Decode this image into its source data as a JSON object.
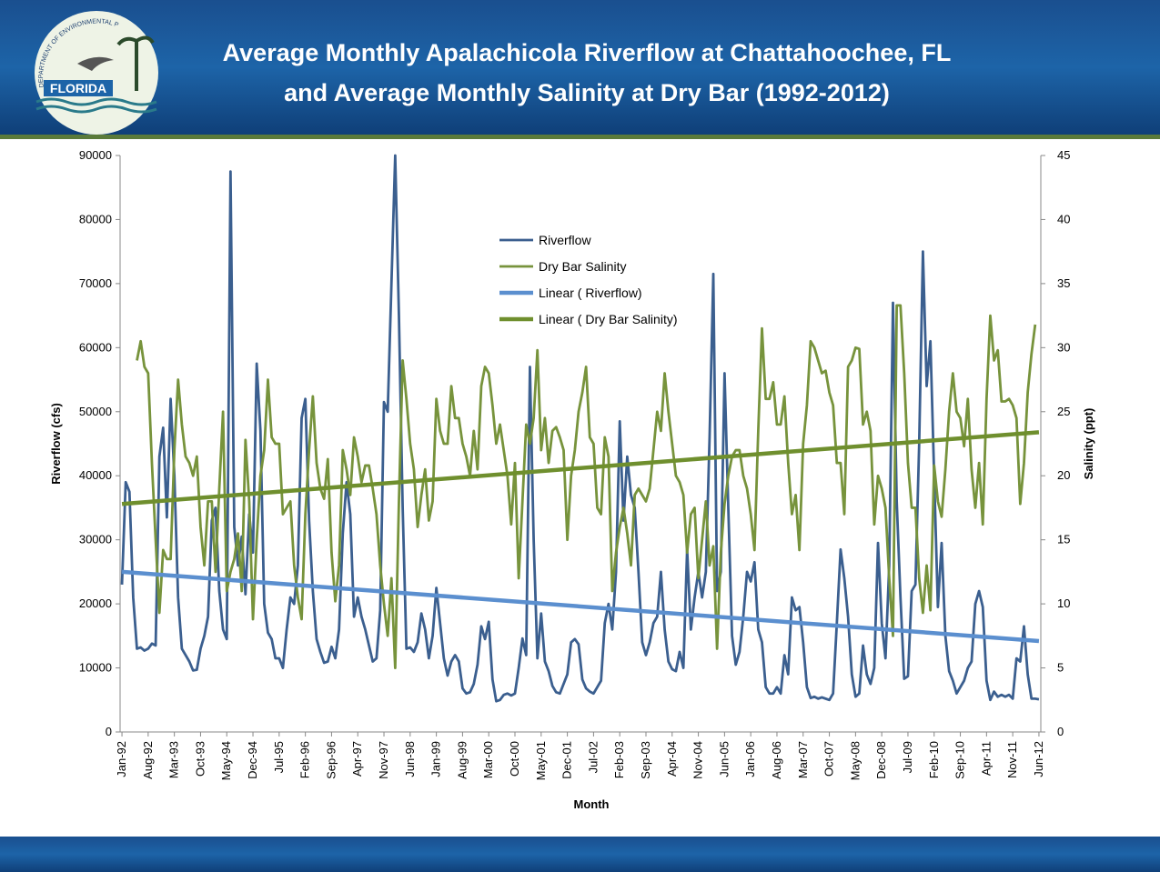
{
  "logo": {
    "text": "FLORIDA",
    "arc_text": "DEPARTMENT OF ENVIRONMENTAL PROTECTION"
  },
  "chart_data": {
    "type": "line",
    "title": [
      "Average Monthly Apalachicola Riverflow at Chattahoochee, FL",
      "and Average Monthly Salinity at Dry Bar (1992-2012)"
    ],
    "x_label": "Month",
    "y_label": "Riverflow (cfs)",
    "y2_label": "Salinity (ppt)",
    "ylim": [
      0,
      90000
    ],
    "yticks": [
      0,
      10000,
      20000,
      30000,
      40000,
      50000,
      60000,
      70000,
      80000,
      90000
    ],
    "y2lim": [
      0,
      45
    ],
    "y2ticks": [
      0,
      5,
      10,
      15,
      20,
      25,
      30,
      35,
      40,
      45
    ],
    "grid": false,
    "legend": "top-center",
    "categories": [
      "Jan-92",
      null,
      null,
      null,
      null,
      null,
      null,
      "Aug-92",
      null,
      null,
      null,
      null,
      null,
      null,
      "Mar-93",
      null,
      null,
      null,
      null,
      null,
      null,
      "Oct-93",
      null,
      null,
      null,
      null,
      null,
      null,
      "May-94",
      null,
      null,
      null,
      null,
      null,
      null,
      "Dec-94",
      null,
      null,
      null,
      null,
      null,
      null,
      "Jul-95",
      null,
      null,
      null,
      null,
      null,
      null,
      "Feb-96",
      null,
      null,
      null,
      null,
      null,
      null,
      "Sep-96",
      null,
      null,
      null,
      null,
      null,
      null,
      "Apr-97",
      null,
      null,
      null,
      null,
      null,
      null,
      "Nov-97",
      null,
      null,
      null,
      null,
      null,
      null,
      "Jun-98",
      null,
      null,
      null,
      null,
      null,
      null,
      "Jan-99",
      null,
      null,
      null,
      null,
      null,
      null,
      "Aug-99",
      null,
      null,
      null,
      null,
      null,
      null,
      "Mar-00",
      null,
      null,
      null,
      null,
      null,
      null,
      "Oct-00",
      null,
      null,
      null,
      null,
      null,
      null,
      "May-01",
      null,
      null,
      null,
      null,
      null,
      null,
      "Dec-01",
      null,
      null,
      null,
      null,
      null,
      null,
      "Jul-02",
      null,
      null,
      null,
      null,
      null,
      null,
      "Feb-03",
      null,
      null,
      null,
      null,
      null,
      null,
      "Sep-03",
      null,
      null,
      null,
      null,
      null,
      null,
      "Apr-04",
      null,
      null,
      null,
      null,
      null,
      null,
      "Nov-04",
      null,
      null,
      null,
      null,
      null,
      null,
      "Jun-05",
      null,
      null,
      null,
      null,
      null,
      null,
      "Jan-06",
      null,
      null,
      null,
      null,
      null,
      null,
      "Aug-06",
      null,
      null,
      null,
      null,
      null,
      null,
      "Mar-07",
      null,
      null,
      null,
      null,
      null,
      null,
      "Oct-07",
      null,
      null,
      null,
      null,
      null,
      null,
      "May-08",
      null,
      null,
      null,
      null,
      null,
      null,
      "Dec-08",
      null,
      null,
      null,
      null,
      null,
      null,
      "Jul-09",
      null,
      null,
      null,
      null,
      null,
      null,
      "Feb-10",
      null,
      null,
      null,
      null,
      null,
      null,
      "Sep-10",
      null,
      null,
      null,
      null,
      null,
      null,
      "Apr-11",
      null,
      null,
      null,
      null,
      null,
      null,
      "Nov-11",
      null,
      null,
      null,
      null,
      null,
      null,
      "Jun-12"
    ],
    "series": [
      {
        "name": "Riverflow",
        "color": "#3b5f8f",
        "axis": "y",
        "values": [
          23000,
          39000,
          37500,
          21000,
          13000,
          13200,
          12700,
          13000,
          13800,
          13500,
          43000,
          47500,
          33500,
          52000,
          40000,
          21000,
          13000,
          12000,
          11000,
          9600,
          9700,
          13000,
          15000,
          18000,
          33000,
          35000,
          22000,
          16000,
          14500,
          87500,
          32000,
          26000,
          30500,
          21500,
          34000,
          28000,
          57500,
          47000,
          20000,
          15500,
          14500,
          11500,
          11500,
          10000,
          16000,
          21000,
          20000,
          26000,
          49000,
          52000,
          33000,
          22000,
          14500,
          12500,
          10800,
          11000,
          13300,
          11500,
          16000,
          31000,
          39000,
          34000,
          18000,
          21000,
          18000,
          16000,
          13500,
          11000,
          11500,
          19000,
          51500,
          50000,
          70000,
          90000,
          65000,
          35000,
          13000,
          13200,
          12500,
          14000,
          18500,
          16000,
          11500,
          15000,
          22500,
          17000,
          11500,
          8800,
          11000,
          12000,
          11000,
          6800,
          6000,
          6200,
          7500,
          10500,
          16500,
          14500,
          17200,
          8200,
          4800,
          5000,
          5800,
          6000,
          5700,
          6000,
          10000,
          14600,
          12000,
          57000,
          30000,
          11500,
          18500,
          11000,
          9500,
          7200,
          6200,
          6000,
          7500,
          9000,
          14000,
          14500,
          13700,
          8200,
          6800,
          6300,
          6000,
          7000,
          8000,
          17000,
          20000,
          16000,
          25000,
          48500,
          33000,
          43000,
          37000,
          35000,
          25000,
          14000,
          12000,
          14000,
          17000,
          18000,
          25000,
          16000,
          11000,
          9800,
          9500,
          12500,
          10000,
          28500,
          16000,
          21000,
          25000,
          21000,
          25000,
          46000,
          71500,
          22000,
          25000,
          56000,
          35000,
          15000,
          10500,
          12500,
          18000,
          25000,
          23500,
          26500,
          16000,
          14000,
          7000,
          6000,
          6000,
          7000,
          6000,
          12000,
          9000,
          21000,
          19000,
          19500,
          14000,
          7000,
          5300,
          5500,
          5200,
          5400,
          5200,
          5000,
          6000,
          17000,
          28500,
          24000,
          18000,
          9000,
          5500,
          6000,
          13500,
          9000,
          7500,
          10000,
          29500,
          17000,
          11500,
          26000,
          67000,
          36000,
          21000,
          8300,
          8700,
          22000,
          23000,
          45000,
          75000,
          54000,
          61000,
          40000,
          19500,
          29500,
          15000,
          9500,
          8000,
          6000,
          7000,
          8000,
          10000,
          11000,
          20000,
          22000,
          19500,
          8000,
          5000,
          6300,
          5500,
          5800,
          5500,
          5800,
          5200,
          11500,
          11000,
          16500,
          9000,
          5200,
          5200,
          5100
        ]
      },
      {
        "name": "Dry Bar Salinity",
        "color": "#77933c",
        "axis": "y2",
        "values": [
          null,
          null,
          null,
          null,
          29,
          30.5,
          28.5,
          28,
          21,
          15,
          9.3,
          14.2,
          13.5,
          13.5,
          22,
          27.5,
          24,
          21.5,
          21,
          20,
          21.5,
          16,
          13,
          18,
          18,
          12.5,
          19,
          25,
          11,
          12.5,
          13.5,
          15.5,
          11,
          22.8,
          18,
          8.8,
          15,
          20,
          22,
          27.5,
          23,
          22.5,
          22.5,
          17,
          17.5,
          18,
          13,
          10.5,
          8.8,
          17,
          22,
          26.2,
          21,
          19,
          18.2,
          21.3,
          14,
          10.2,
          13,
          22,
          20.5,
          18.5,
          23,
          21.5,
          19.5,
          20.8,
          20.8,
          19,
          17,
          13,
          10,
          7.5,
          12,
          5,
          18,
          29,
          26,
          22.5,
          20.5,
          16,
          18.5,
          20.5,
          16.5,
          18,
          26,
          23.5,
          22.5,
          22.5,
          27,
          24.5,
          24.5,
          22.5,
          21.5,
          20,
          23.5,
          20.5,
          27,
          28.5,
          28,
          25.5,
          22.5,
          24,
          22,
          20,
          16.2,
          21,
          12,
          18,
          24,
          22.5,
          24.5,
          29.8,
          22,
          24.5,
          21,
          23.5,
          23.8,
          23,
          22,
          15,
          20,
          22,
          25,
          26.5,
          28.5,
          23,
          22.5,
          17.5,
          17,
          23,
          21.5,
          11,
          14,
          16,
          17.5,
          15.5,
          13,
          18.5,
          19,
          18.5,
          18,
          19,
          22,
          25,
          23.5,
          28,
          25,
          22.5,
          20,
          19.5,
          18.5,
          14,
          17,
          17.5,
          12,
          15,
          18,
          13,
          14.5,
          6.5,
          14,
          17.8,
          20,
          21.5,
          22,
          22,
          20,
          19,
          17,
          14.2,
          23.5,
          31.5,
          26,
          26,
          27.3,
          24,
          24,
          26.2,
          21,
          17,
          18.5,
          14.2,
          22.5,
          25.5,
          30.5,
          30,
          29,
          28,
          28.2,
          26.5,
          25.5,
          21,
          21,
          17,
          28.5,
          29,
          30,
          29.9,
          24,
          25,
          23.5,
          16.2,
          20,
          19,
          17.5,
          12,
          7.5,
          33.3,
          33.3,
          28,
          21,
          17.5,
          17.5,
          12,
          9.3,
          13,
          9.5,
          20.8,
          18,
          16.8,
          20.5,
          25,
          28,
          25,
          24.5,
          22.3,
          26,
          20.5,
          17.5,
          21,
          16.2,
          26,
          32.5,
          29,
          29.8,
          25.8,
          25.8,
          26,
          25.5,
          24.5,
          17.8,
          21,
          26.5,
          29.5,
          31.8,
          null
        ]
      }
    ],
    "trendlines": [
      {
        "name": "Linear ( Riverflow)",
        "color": "#5b8fcf",
        "axis": "y",
        "values": [
          25000,
          14200
        ]
      },
      {
        "name": "Linear ( Dry Bar Salinity)",
        "color": "#6f8f2e",
        "axis": "y2",
        "values": [
          17.8,
          23.4
        ]
      }
    ]
  }
}
